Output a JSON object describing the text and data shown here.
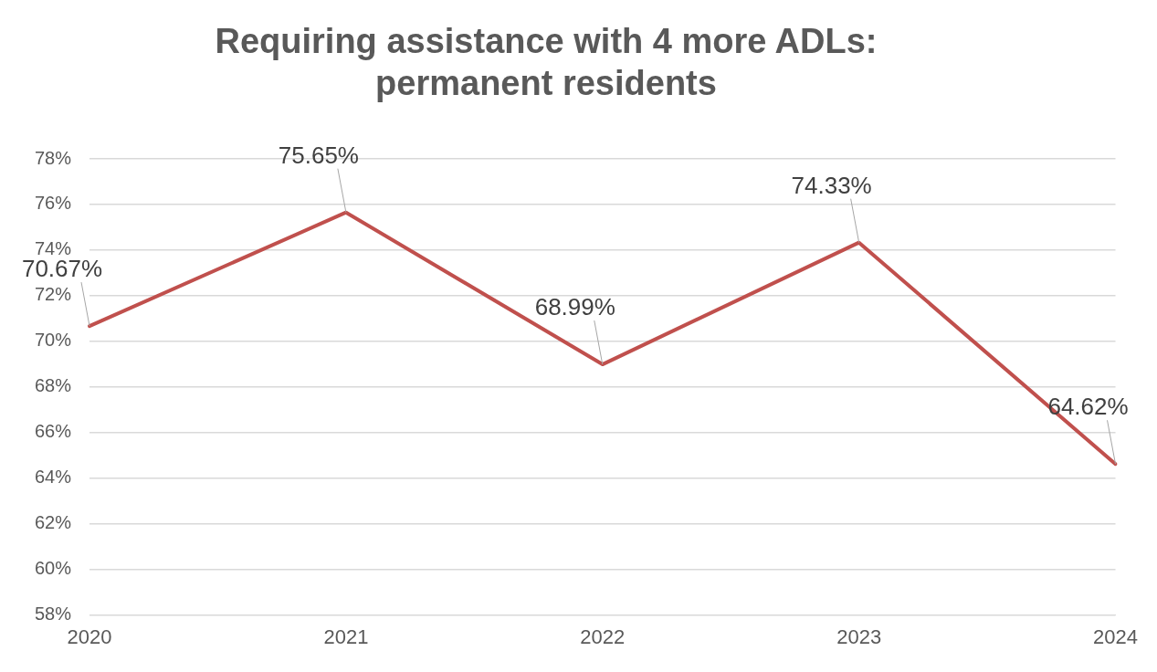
{
  "chart_data": {
    "type": "line",
    "title": "Requiring assistance with 4 more ADLs: permanent residents",
    "categories": [
      "2020",
      "2021",
      "2022",
      "2023",
      "2024"
    ],
    "series": [
      {
        "color": "#c0504d",
        "values": [
          70.67,
          75.65,
          68.99,
          74.33,
          64.62
        ],
        "value_labels": [
          "70.67%",
          "75.65%",
          "68.99%",
          "74.33%",
          "64.62%"
        ]
      }
    ],
    "ylim": [
      58,
      78
    ],
    "yticks": [
      {
        "value": 58,
        "label": "58%"
      },
      {
        "value": 60,
        "label": "60%"
      },
      {
        "value": 62,
        "label": "62%"
      },
      {
        "value": 64,
        "label": "64%"
      },
      {
        "value": 66,
        "label": "66%"
      },
      {
        "value": 68,
        "label": "68%"
      },
      {
        "value": 70,
        "label": "70%"
      },
      {
        "value": 72,
        "label": "72%"
      },
      {
        "value": 74,
        "label": "74%"
      },
      {
        "value": 76,
        "label": "76%"
      },
      {
        "value": 78,
        "label": "78%"
      }
    ],
    "grid": "y",
    "legend": false,
    "marker": "none",
    "line_style": "solid"
  }
}
